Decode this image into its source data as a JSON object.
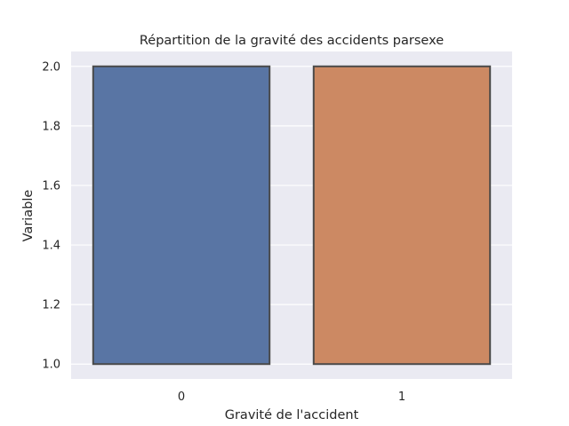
{
  "chart_data": {
    "type": "bar",
    "title": "Répartition de la gravité des accidents parsexe",
    "xlabel": "Gravité de l'accident",
    "ylabel": "Variable",
    "categories": [
      "0",
      "1"
    ],
    "series": [
      {
        "boxes": [
          {
            "category": "0",
            "low": 1.0,
            "high": 2.0,
            "color": "#5975a4"
          },
          {
            "category": "1",
            "low": 1.0,
            "high": 2.0,
            "color": "#cc8963"
          }
        ]
      }
    ],
    "ylim": [
      0.95,
      2.05
    ],
    "yticks": [
      1.0,
      1.2,
      1.4,
      1.6,
      1.8,
      2.0
    ],
    "ytick_labels": [
      "1.0",
      "1.2",
      "1.4",
      "1.6",
      "1.8",
      "2.0"
    ],
    "grid": true,
    "background": "#eaeaf2",
    "edge_color": "#4a4a4a"
  }
}
